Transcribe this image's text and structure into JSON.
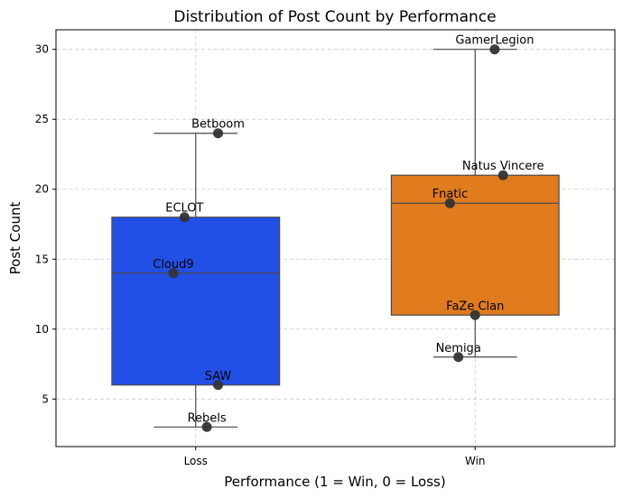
{
  "chart_data": {
    "type": "box",
    "title": "Distribution of Post Count by Performance",
    "xlabel": "Performance (1 = Win, 0 = Loss)",
    "ylabel": "Post Count",
    "ylim": [
      1.6,
      31.4
    ],
    "yticks": [
      5,
      10,
      15,
      20,
      25,
      30
    ],
    "grid": true,
    "categories": [
      "Loss",
      "Win"
    ],
    "boxes": [
      {
        "category": "Loss",
        "color": "#2250e6",
        "whisker_low": 3,
        "q1": 6,
        "median": 14,
        "q3": 18,
        "whisker_high": 24,
        "points": [
          {
            "label": "Betboom",
            "value": 24,
            "jitter": 0.08
          },
          {
            "label": "ECLOT",
            "value": 18,
            "jitter": -0.04
          },
          {
            "label": "Cloud9",
            "value": 14,
            "jitter": -0.08
          },
          {
            "label": "SAW",
            "value": 6,
            "jitter": 0.08
          },
          {
            "label": "Rebels",
            "value": 3,
            "jitter": 0.04
          }
        ]
      },
      {
        "category": "Win",
        "color": "#e07c1e",
        "whisker_low": 8,
        "q1": 11,
        "median": 19,
        "q3": 21,
        "whisker_high": 30,
        "points": [
          {
            "label": "GamerLegion",
            "value": 30,
            "jitter": 0.07
          },
          {
            "label": "Natus Vincere",
            "value": 21,
            "jitter": 0.1
          },
          {
            "label": "Fnatic",
            "value": 19,
            "jitter": -0.09
          },
          {
            "label": "FaZe Clan",
            "value": 11,
            "jitter": 0.0
          },
          {
            "label": "Nemiga",
            "value": 8,
            "jitter": -0.06
          }
        ]
      }
    ]
  }
}
